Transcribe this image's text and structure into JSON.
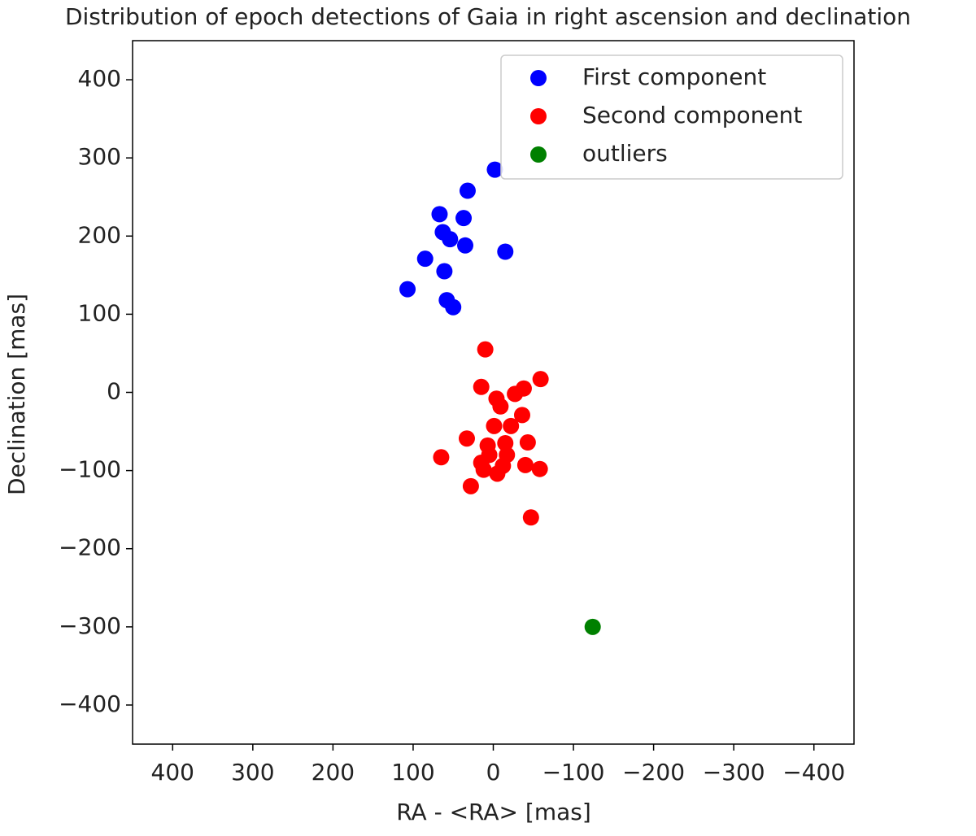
{
  "chart_data": {
    "type": "scatter",
    "title": "Distribution of epoch detections of Gaia in right ascension and declination",
    "xlabel": "RA - <RA> [mas]",
    "ylabel": "Declination [mas]",
    "xlim": [
      450,
      -450
    ],
    "ylim": [
      -450,
      450
    ],
    "xticks": [
      400,
      300,
      200,
      100,
      0,
      {
        "value": -100,
        "label": "−100"
      },
      {
        "value": -200,
        "label": "−200"
      },
      {
        "value": -300,
        "label": "−300"
      },
      {
        "value": -400,
        "label": "−400"
      }
    ],
    "yticks": [
      400,
      300,
      200,
      100,
      0,
      {
        "value": -100,
        "label": "−100"
      },
      {
        "value": -200,
        "label": "−200"
      },
      {
        "value": -300,
        "label": "−300"
      },
      {
        "value": -400,
        "label": "−400"
      }
    ],
    "legend": "upper right",
    "series": [
      {
        "name": "First component",
        "color": "#0000ff",
        "x": [
          -2,
          32,
          67,
          37,
          63,
          54,
          35,
          -15,
          85,
          61,
          107,
          58,
          50
        ],
        "y": [
          285,
          258,
          228,
          223,
          205,
          196,
          188,
          180,
          171,
          155,
          132,
          118,
          109
        ]
      },
      {
        "name": "Second component",
        "color": "#ff0000",
        "x": [
          10,
          -59,
          15,
          -38,
          -27,
          -4,
          -9,
          -36,
          -22,
          -1,
          33,
          7,
          -15,
          -43,
          5,
          -17,
          65,
          15,
          -12,
          -40,
          -58,
          12,
          -5,
          28,
          -47
        ],
        "y": [
          55,
          17,
          7,
          5,
          -2,
          -8,
          -18,
          -29,
          -43,
          -43,
          -59,
          -68,
          -65,
          -64,
          -80,
          -80,
          -83,
          -90,
          -94,
          -93,
          -98,
          -99,
          -104,
          -120,
          -160
        ]
      },
      {
        "name": "outliers",
        "color": "#008000",
        "x": [
          -124
        ],
        "y": [
          -300
        ]
      }
    ]
  }
}
